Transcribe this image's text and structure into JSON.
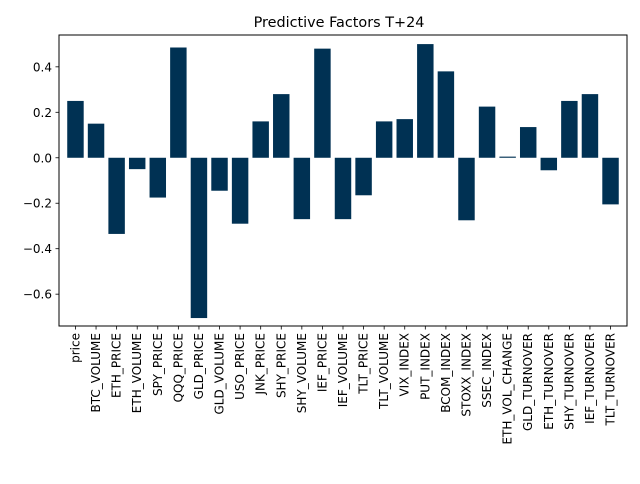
{
  "chart_data": {
    "type": "bar",
    "title": "Predictive Factors T+24",
    "xlabel": "",
    "ylabel": "",
    "categories": [
      "price",
      "BTC_VOLUME",
      "ETH_PRICE",
      "ETH_VOLUME",
      "SPY_PRICE",
      "QQQ_PRICE",
      "GLD_PRICE",
      "GLD_VOLUME",
      "USO_PRICE",
      "JNK_PRICE",
      "SHY_PRICE",
      "SHY_VOLUME",
      "IEF_PRICE",
      "IEF_VOLUME",
      "TLT_PRICE",
      "TLT_VOLUME",
      "VIX_INDEX",
      "PUT_INDEX",
      "BCOM_INDEX",
      "STOXX_INDEX",
      "SSEC_INDEX",
      "ETH_VOL_CHANGE",
      "GLD_TURNOVER",
      "ETH_TURNOVER",
      "SHY_TURNOVER",
      "IEF_TURNOVER",
      "TLT_TURNOVER"
    ],
    "values": [
      0.25,
      0.15,
      -0.335,
      -0.05,
      -0.175,
      0.485,
      -0.705,
      -0.145,
      -0.29,
      0.16,
      0.28,
      -0.27,
      0.48,
      -0.27,
      -0.165,
      0.16,
      0.17,
      0.5,
      0.38,
      -0.275,
      0.225,
      0.005,
      0.135,
      -0.055,
      0.25,
      0.28,
      -0.205
    ],
    "ylim": [
      -0.74,
      0.54
    ],
    "yticks": [
      -0.6,
      -0.4,
      -0.2,
      0.0,
      0.2,
      0.4
    ],
    "ytick_labels": [
      "−0.6",
      "−0.4",
      "−0.2",
      "0.0",
      "0.2",
      "0.4"
    ],
    "bar_color": "#003153",
    "grid": false,
    "legend": "none"
  }
}
